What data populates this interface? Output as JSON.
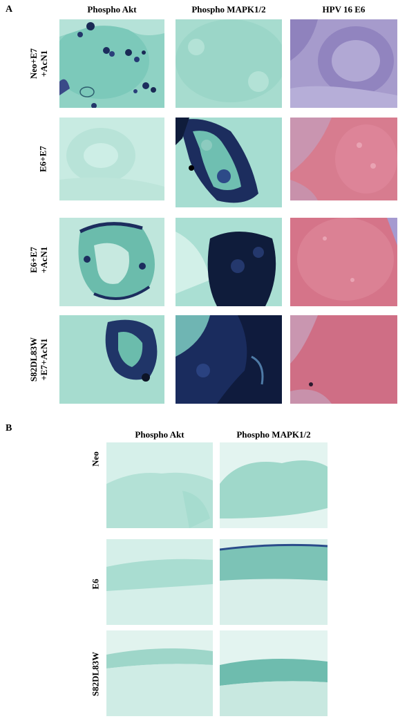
{
  "panel_a": {
    "letter": "A",
    "columns": [
      "Phospho Akt",
      "Phospho MAPK1/2",
      "HPV 16 E6"
    ],
    "rows": [
      {
        "label_lines": [
          "Neo+E7",
          "+AcN1"
        ],
        "stains": [
          "akt-light-patchy",
          "mapk-negative",
          "e6-purple"
        ]
      },
      {
        "label_lines": [
          "E6+E7"
        ],
        "stains": [
          "akt-negative",
          "mapk-strong",
          "e6-pink"
        ]
      },
      {
        "label_lines": [
          "E6+E7",
          "+AcN1"
        ],
        "stains": [
          "akt-moderate",
          "mapk-very-strong",
          "e6-pink"
        ]
      },
      {
        "label_lines": [
          "S82DL83W",
          "+E7+AcN1"
        ],
        "stains": [
          "akt-moderate",
          "mapk-very-strong",
          "e6-pink"
        ]
      }
    ]
  },
  "panel_b": {
    "letter": "B",
    "columns": [
      "Phospho Akt",
      "Phospho MAPK1/2"
    ],
    "rows": [
      {
        "label_lines": [
          "Neo"
        ],
        "stains": [
          "epi-neo-akt",
          "epi-neo-mapk"
        ]
      },
      {
        "label_lines": [
          "E6"
        ],
        "stains": [
          "epi-e6-akt",
          "epi-e6-mapk"
        ]
      },
      {
        "label_lines": [
          "S82DL83W"
        ],
        "stains": [
          "epi-s82-akt",
          "epi-s82-mapk"
        ]
      }
    ]
  },
  "colors": {
    "counterstain": "#a6d8cf",
    "dab_dark": "#0d1d3a",
    "he_pink": "#cf7186",
    "he_purple": "#9d8fc4"
  }
}
